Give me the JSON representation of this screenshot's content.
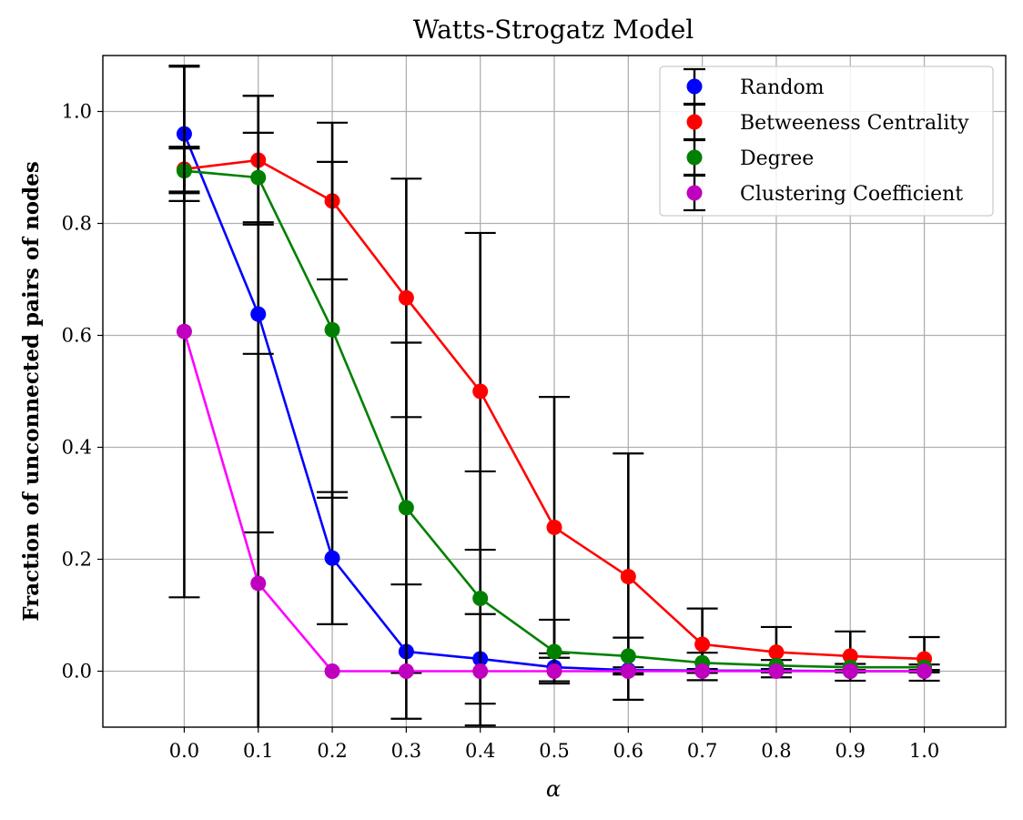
{
  "chart_data": {
    "type": "line",
    "title": "Watts-Strogatz Model",
    "xlabel": "α",
    "ylabel": "Fraction of unconnected pairs of nodes",
    "x": [
      0.0,
      0.1,
      0.2,
      0.3,
      0.4,
      0.5,
      0.6,
      0.7,
      0.8,
      0.9,
      1.0
    ],
    "x_tick_labels": [
      "0.0",
      "0.1",
      "0.2",
      "0.3",
      "0.4",
      "0.5",
      "0.6",
      "0.7",
      "0.8",
      "0.9",
      "1.0"
    ],
    "y_ticks": [
      0.0,
      0.2,
      0.4,
      0.6,
      0.8,
      1.0
    ],
    "y_tick_labels": [
      "0.0",
      "0.2",
      "0.4",
      "0.6",
      "0.8",
      "1.0"
    ],
    "xlim": [
      -0.11,
      1.11
    ],
    "ylim": [
      -0.1,
      1.1
    ],
    "grid": true,
    "legend_position": "top-right",
    "series": [
      {
        "name": "Random",
        "line_color": "#0000ff",
        "marker_color": "#0000ff",
        "values": [
          0.96,
          0.638,
          0.202,
          0.035,
          0.022,
          0.007,
          0.002,
          0.001,
          0.001,
          0.0,
          0.0
        ],
        "error": [
          0.12,
          0.39,
          0.118,
          0.12,
          0.08,
          0.025,
          0.005,
          0.003,
          0.003,
          0.002,
          0.002
        ]
      },
      {
        "name": "Betweeness Centrality",
        "line_color": "#ff0000",
        "marker_color": "#ff0000",
        "values": [
          0.897,
          0.913,
          0.84,
          0.667,
          0.5,
          0.257,
          0.169,
          0.048,
          0.034,
          0.027,
          0.022
        ],
        "error": [
          0.04,
          0.115,
          0.14,
          0.213,
          0.283,
          0.233,
          0.22,
          0.064,
          0.045,
          0.044,
          0.039
        ]
      },
      {
        "name": "Degree",
        "line_color": "#008000",
        "marker_color": "#008000",
        "values": [
          0.894,
          0.882,
          0.61,
          0.292,
          0.13,
          0.035,
          0.027,
          0.015,
          0.01,
          0.007,
          0.007
        ],
        "error": [
          0.04,
          0.08,
          0.3,
          0.295,
          0.227,
          0.057,
          0.033,
          0.018,
          0.01,
          0.006,
          0.005
        ]
      },
      {
        "name": "Clustering Coefficient",
        "line_color": "#ff00ff",
        "marker_color": "#bf00bf",
        "values": [
          0.607,
          0.157,
          0.0,
          0.0,
          0.0,
          0.0,
          0.0,
          0.0,
          0.0,
          0.0,
          0.0
        ],
        "error": [
          0.475,
          0.41,
          0.0,
          0.0,
          0.0,
          0.0,
          0.0,
          0.0,
          0.0,
          0.0,
          0.0
        ]
      }
    ]
  }
}
